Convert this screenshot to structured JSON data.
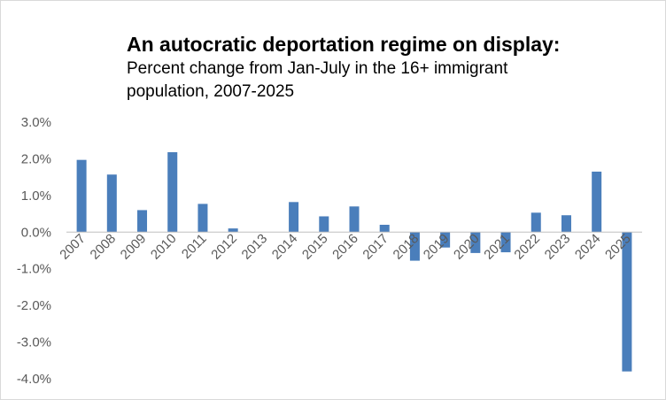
{
  "chart_data": {
    "type": "bar",
    "title": "An autocratic deportation regime on display:",
    "subtitle": "Percent change from Jan-July in the 16+ immigrant population, 2007-2025",
    "xlabel": "",
    "ylabel": "",
    "ylim": [
      -4.0,
      3.0
    ],
    "yticks": [
      "3.0%",
      "2.0%",
      "1.0%",
      "0.0%",
      "-1.0%",
      "-2.0%",
      "-3.0%",
      "-4.0%"
    ],
    "ytick_values": [
      3.0,
      2.0,
      1.0,
      0.0,
      -1.0,
      -2.0,
      -3.0,
      -4.0
    ],
    "grid": false,
    "bar_color": "#4a7ebb",
    "categories": [
      "2007",
      "2008",
      "2009",
      "2010",
      "2011",
      "2012",
      "2013",
      "2014",
      "2015",
      "2016",
      "2017",
      "2018",
      "2019",
      "2020",
      "2021",
      "2022",
      "2023",
      "2024",
      "2025"
    ],
    "values": [
      1.97,
      1.57,
      0.6,
      2.18,
      0.77,
      0.1,
      0.0,
      0.82,
      0.43,
      0.7,
      0.2,
      -0.78,
      -0.42,
      -0.57,
      -0.55,
      0.53,
      0.46,
      1.65,
      -3.8
    ]
  }
}
